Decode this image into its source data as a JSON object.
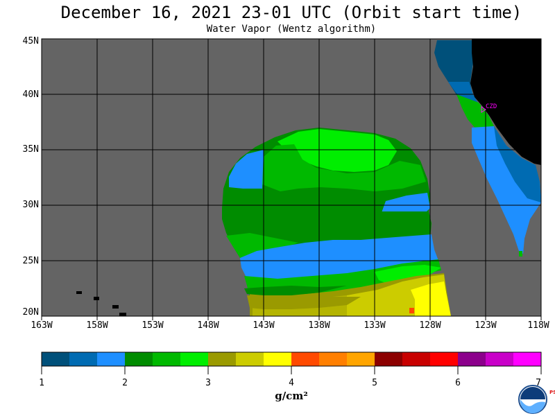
{
  "title": "December 16, 2021  23-01 UTC  (Orbit start time)",
  "subtitle": "Water Vapor (Wentz algorithm)",
  "map": {
    "lat_labels": [
      "45N",
      "40N",
      "35N",
      "30N",
      "25N",
      "20N"
    ],
    "lon_labels": [
      "163W",
      "158W",
      "153W",
      "148W",
      "143W",
      "138W",
      "133W",
      "128W",
      "123W",
      "118W"
    ],
    "station_label": "CZD",
    "background_color": "#646464",
    "land_color": "#000000",
    "grid_color": "#000000"
  },
  "colorbar": {
    "colors": [
      "#00507a",
      "#006bb2",
      "#1e8fff",
      "#008c00",
      "#00b900",
      "#00ee00",
      "#9a9a00",
      "#cccc00",
      "#ffff00",
      "#ff4a00",
      "#ff7f00",
      "#ffa500",
      "#8c0000",
      "#c80000",
      "#ff0000",
      "#8c008c",
      "#c800c8",
      "#ff00ff"
    ],
    "tick_labels": [
      "1",
      "2",
      "3",
      "4",
      "5",
      "6",
      "7"
    ],
    "units": "g/cm²"
  },
  "logo": {
    "text": "NOAA",
    "side_text": "PSL"
  }
}
